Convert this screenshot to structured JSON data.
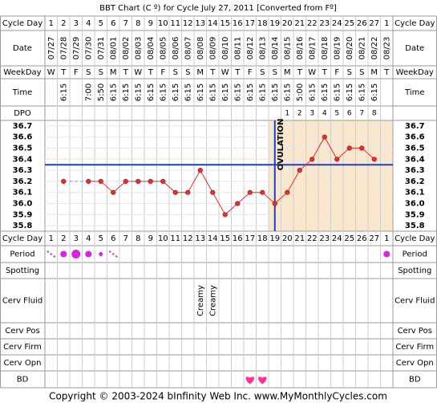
{
  "chart_data": {
    "type": "line",
    "title": "BBT Chart (C º) for Cycle July 27, 2011  [Converted from Fº]",
    "footer": "Copyright © 2003-2024 bInfinity Web Inc.    www.MyMonthlyCycles.com",
    "row_labels": [
      "Cycle Day",
      "Date",
      "WeekDay",
      "Time",
      "DPO",
      "Cycle Day",
      "Period",
      "Spotting",
      "Cerv Fluid",
      "Cerv Pos",
      "Cerv Firm",
      "Cerv Opn",
      "BD"
    ],
    "cycle_days": [
      1,
      2,
      3,
      4,
      5,
      6,
      7,
      8,
      9,
      10,
      11,
      12,
      13,
      14,
      15,
      16,
      17,
      18,
      19,
      20,
      21,
      22,
      23,
      24,
      25,
      26,
      27,
      1
    ],
    "dates": [
      "07/27",
      "07/28",
      "07/29",
      "07/30",
      "07/31",
      "08/01",
      "08/02",
      "08/03",
      "08/04",
      "08/05",
      "08/06",
      "08/07",
      "08/08",
      "08/09",
      "08/10",
      "08/11",
      "08/12",
      "08/13",
      "08/14",
      "08/15",
      "08/16",
      "08/17",
      "08/18",
      "08/19",
      "08/20",
      "08/21",
      "08/22",
      "08/23"
    ],
    "weekdays": [
      "W",
      "T",
      "F",
      "S",
      "S",
      "M",
      "T",
      "W",
      "T",
      "F",
      "S",
      "S",
      "M",
      "T",
      "W",
      "T",
      "F",
      "S",
      "S",
      "M",
      "T",
      "W",
      "T",
      "F",
      "S",
      "S",
      "M",
      "T"
    ],
    "times": [
      null,
      "6:15",
      null,
      "7:00",
      "5:50",
      "6:15",
      "6:15",
      "6:15",
      "6:15",
      "6:15",
      "6:15",
      "6:15",
      "6:15",
      "6:15",
      "6:15",
      "6:15",
      "6:15",
      "6:15",
      "6:15",
      "6:15",
      "5:00",
      "6:15",
      "6:15",
      "6:15",
      "6:15",
      "6:15",
      "6:15",
      null
    ],
    "dpo": [
      null,
      null,
      null,
      null,
      null,
      null,
      null,
      null,
      null,
      null,
      null,
      null,
      null,
      null,
      null,
      null,
      null,
      null,
      null,
      1,
      2,
      3,
      4,
      5,
      6,
      7,
      8,
      null
    ],
    "values": [
      null,
      36.2,
      null,
      36.2,
      36.2,
      36.1,
      36.2,
      36.2,
      36.2,
      36.2,
      36.1,
      36.1,
      36.3,
      36.1,
      35.9,
      36.0,
      36.1,
      36.1,
      36.0,
      36.1,
      36.3,
      36.4,
      36.6,
      36.4,
      36.5,
      36.5,
      36.4,
      null
    ],
    "color": "#e03030",
    "ylim": [
      35.75,
      36.75
    ],
    "yticks": [
      36.7,
      36.6,
      36.5,
      36.4,
      36.3,
      36.2,
      36.1,
      {
        "value": 36.0,
        "label": "36.0"
      },
      35.9,
      35.8
    ],
    "coverline": 36.35,
    "ovulation_day": 19,
    "ovulation_label": "OVULATION",
    "period": [
      "spotting",
      "medium",
      "heavy",
      "medium",
      "light",
      "spotting",
      null,
      null,
      null,
      null,
      null,
      null,
      null,
      null,
      null,
      null,
      null,
      null,
      null,
      null,
      null,
      null,
      null,
      null,
      null,
      null,
      null,
      "medium"
    ],
    "period_color": "#e020e0",
    "cerv_fluid": [
      null,
      null,
      null,
      null,
      null,
      null,
      null,
      null,
      null,
      null,
      null,
      null,
      "Creamy",
      "Creamy",
      null,
      null,
      null,
      null,
      null,
      null,
      null,
      null,
      null,
      null,
      null,
      null,
      null,
      null
    ],
    "bd": [
      false,
      false,
      false,
      false,
      false,
      false,
      false,
      false,
      false,
      false,
      false,
      false,
      false,
      false,
      false,
      false,
      true,
      true,
      false,
      false,
      false,
      false,
      false,
      false,
      false,
      false,
      false,
      false
    ],
    "bd_color": "#ff3399"
  }
}
